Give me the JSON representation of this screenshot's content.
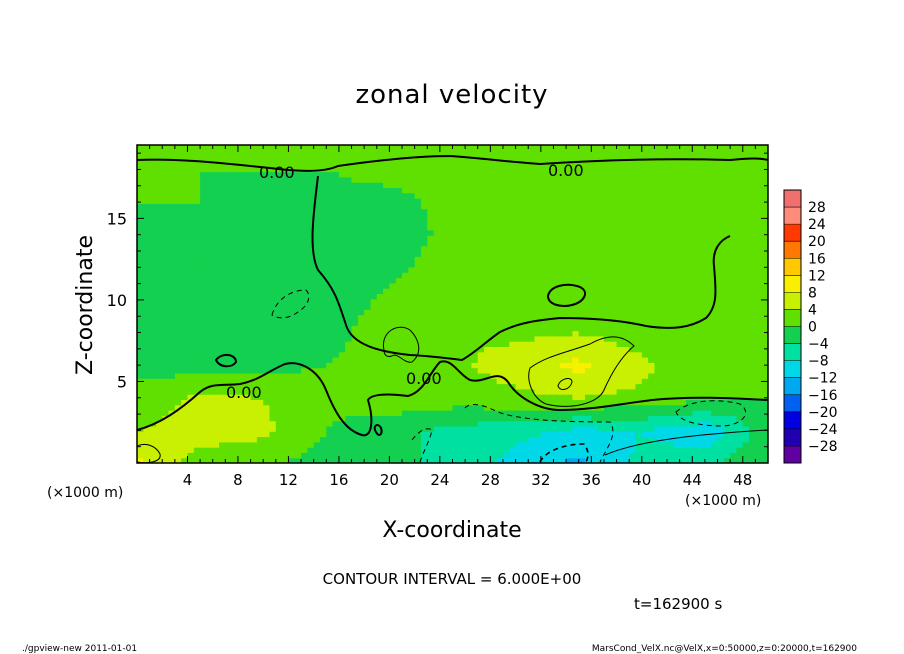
{
  "chart_data": {
    "type": "heatmap",
    "title": "zonal velocity",
    "xlabel": "X-coordinate",
    "ylabel": "Z-coordinate",
    "x_unit": "(×1000 m)",
    "y_unit": "(×1000 m)",
    "x_ticks": [
      "4",
      "8",
      "12",
      "16",
      "20",
      "24",
      "28",
      "32",
      "36",
      "40",
      "44",
      "48"
    ],
    "y_ticks": [
      "5",
      "10",
      "15"
    ],
    "xlim": [
      0,
      50
    ],
    "ylim": [
      0,
      19.5
    ],
    "contour_label": "0.00",
    "contour_interval_text": "CONTOUR INTERVAL = 6.000E+00",
    "time_text": "t=162900 s",
    "colorbar": {
      "levels": [
        "28",
        "24",
        "20",
        "16",
        "12",
        "8",
        "4",
        "0",
        "−4",
        "−8",
        "−12",
        "−16",
        "−20",
        "−24",
        "−28"
      ],
      "colors": [
        "#f07070",
        "#ff8c7a",
        "#ff3a00",
        "#ff7800",
        "#ffc800",
        "#f8f000",
        "#c8f000",
        "#60e000",
        "#14d050",
        "#00e0a0",
        "#00d8e8",
        "#00a8f0",
        "#0060f0",
        "#0000e0",
        "#2000b0",
        "#6000a0"
      ]
    },
    "field": {
      "x": [
        0,
        5,
        10,
        15,
        20,
        25,
        30,
        35,
        40,
        45,
        50
      ],
      "z": [
        0,
        2,
        4,
        6,
        8,
        10,
        12,
        14,
        16,
        18,
        19.5
      ],
      "u": [
        [
          9,
          2,
          1,
          -2,
          -2,
          -6,
          -9,
          -13,
          -7,
          -5,
          0
        ],
        [
          4,
          6,
          5,
          0,
          -3,
          -5,
          -7,
          -9,
          -8,
          -11,
          -2
        ],
        [
          1,
          5,
          4,
          1,
          3,
          2,
          3,
          4,
          3,
          1,
          0
        ],
        [
          -1,
          -2,
          -1,
          0,
          2,
          3,
          6,
          9,
          5,
          1,
          0
        ],
        [
          -2,
          -3,
          -3,
          -2,
          3,
          4,
          3,
          4,
          2,
          1,
          0
        ],
        [
          -2,
          -3,
          -4,
          -3,
          1,
          2,
          2,
          2,
          1,
          1,
          1
        ],
        [
          -2,
          -2,
          -3,
          -3,
          -1,
          2,
          2,
          2,
          1,
          1,
          1
        ],
        [
          -1,
          -1,
          -1,
          -2,
          -2,
          1,
          1,
          1,
          1,
          1,
          1
        ],
        [
          0,
          0,
          -1,
          -1,
          -1,
          1,
          1,
          1,
          1,
          1,
          1
        ],
        [
          0,
          0,
          0,
          0,
          1,
          1,
          1,
          1,
          1,
          1,
          1
        ],
        [
          0,
          0,
          0,
          0,
          1,
          1,
          1,
          1,
          1,
          1,
          0
        ]
      ]
    }
  },
  "footer": {
    "left": "./gpview-new   2011-01-01",
    "right": "MarsCond_VelX.nc@VelX,x=0:50000,z=0:20000,t=162900"
  }
}
